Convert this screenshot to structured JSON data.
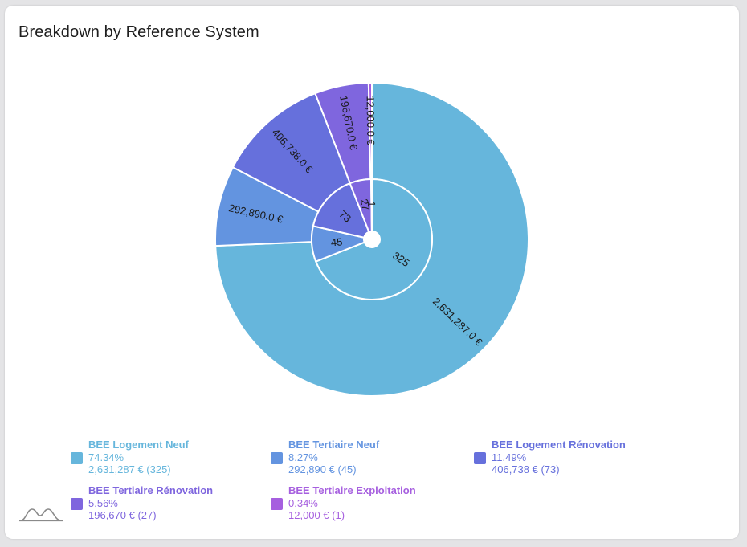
{
  "card": {
    "title": "Breakdown by Reference System"
  },
  "chart_data": {
    "type": "pie",
    "variant": "nested-donut",
    "title": "Breakdown by Reference System",
    "categories": [
      "BEE Logement Neuf",
      "BEE Tertiaire Neuf",
      "BEE Logement Rénovation",
      "BEE Tertiaire Rénovation",
      "BEE Tertiaire Exploitation"
    ],
    "series": [
      {
        "name": "",
        "ring": "outer",
        "values": [
          2631287,
          292890,
          406738,
          196670,
          12000
        ],
        "labels": [
          "2,631,287.0 €",
          "292,890.0 €",
          "406,738.0 €",
          "196,670.0 €",
          "12,000.0 €"
        ]
      },
      {
        "name": "",
        "ring": "inner",
        "values": [
          325,
          45,
          73,
          27,
          1
        ],
        "labels": [
          "325",
          "45",
          "73",
          "27",
          "1"
        ]
      }
    ],
    "colors": [
      "#66b6dc",
      "#6394e0",
      "#6670dc",
      "#7f66de",
      "#a65fdf"
    ],
    "legend_position": "bottom"
  },
  "legend": [
    {
      "name": "BEE Logement Neuf",
      "pct": "74.34%",
      "value": "2,631,287 € (325)",
      "color": "#66b6dc"
    },
    {
      "name": "BEE Tertiaire Neuf",
      "pct": "8.27%",
      "value": "292,890 € (45)",
      "color": "#6394e0"
    },
    {
      "name": "BEE Logement Rénovation",
      "pct": "11.49%",
      "value": "406,738 € (73)",
      "color": "#6670dc"
    },
    {
      "name": "BEE Tertiaire Rénovation",
      "pct": "5.56%",
      "value": "196,670 € (27)",
      "color": "#7f66de"
    },
    {
      "name": "BEE Tertiaire Exploitation",
      "pct": "0.34%",
      "value": "12,000 € (1)",
      "color": "#a65fdf"
    }
  ],
  "icons": {
    "footer": "chart-thumbnail-icon"
  }
}
